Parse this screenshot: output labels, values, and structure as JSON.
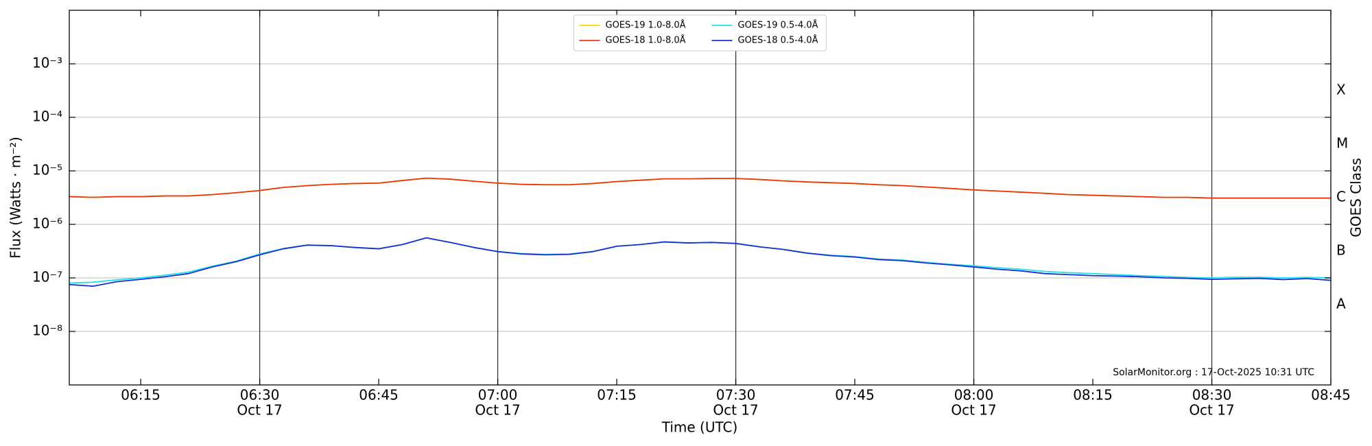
{
  "chart_data": {
    "type": "line",
    "log_y": true,
    "grid": true,
    "legend": "upper center",
    "annotation": "SolarMonitor.org : 17-Oct-2025 10:31 UTC",
    "xlabel": "Time (UTC)",
    "ylabel": "Flux (Watts · m⁻²)",
    "y2label": "GOES Class",
    "xlim": [
      "06:06",
      "08:45"
    ],
    "xticks": [
      "06:15",
      {
        "value": "06:30",
        "label": [
          "06:30",
          "Oct 17"
        ]
      },
      "06:45",
      {
        "value": "07:00",
        "label": [
          "07:00",
          "Oct 17"
        ]
      },
      "07:15",
      {
        "value": "07:30",
        "label": [
          "07:30",
          "Oct 17"
        ]
      },
      "07:45",
      {
        "value": "08:00",
        "label": [
          "08:00",
          "Oct 17"
        ]
      },
      "08:15",
      {
        "value": "08:30",
        "label": [
          "08:30",
          "Oct 17"
        ]
      },
      "08:45"
    ],
    "ylim": [
      1e-09,
      0.01
    ],
    "yticks": [
      {
        "value": 1e-08,
        "label": "10⁻⁸"
      },
      {
        "value": 1e-07,
        "label": "10⁻⁷"
      },
      {
        "value": 1e-06,
        "label": "10⁻⁶"
      },
      {
        "value": 1e-05,
        "label": "10⁻⁵"
      },
      {
        "value": 0.0001,
        "label": "10⁻⁴"
      },
      {
        "value": 0.001,
        "label": "10⁻³"
      }
    ],
    "y2lim": [
      1e-09,
      0.01
    ],
    "y2ticks": [
      {
        "value": 3.16e-08,
        "label": "A"
      },
      {
        "value": 3.16e-07,
        "label": "B"
      },
      {
        "value": 3.16e-06,
        "label": "C"
      },
      {
        "value": 3.16e-05,
        "label": "M"
      },
      {
        "value": 0.000316,
        "label": "X"
      }
    ],
    "x": [
      "06:06",
      "06:09",
      "06:12",
      "06:15",
      "06:18",
      "06:21",
      "06:24",
      "06:27",
      "06:30",
      "06:33",
      "06:36",
      "06:39",
      "06:42",
      "06:45",
      "06:48",
      "06:51",
      "06:54",
      "06:57",
      "07:00",
      "07:03",
      "07:06",
      "07:09",
      "07:12",
      "07:15",
      "07:18",
      "07:21",
      "07:24",
      "07:27",
      "07:30",
      "07:33",
      "07:36",
      "07:39",
      "07:42",
      "07:45",
      "07:48",
      "07:51",
      "07:54",
      "07:57",
      "08:00",
      "08:03",
      "08:06",
      "08:09",
      "08:12",
      "08:15",
      "08:18",
      "08:21",
      "08:24",
      "08:27",
      "08:30",
      "08:33",
      "08:36",
      "08:39",
      "08:42",
      "08:45"
    ],
    "series": [
      {
        "name": "GOES-19 1.0-8.0Å",
        "color": "#ffd700",
        "values": [
          3.3e-06,
          3.2e-06,
          3.3e-06,
          3.3e-06,
          3.4e-06,
          3.4e-06,
          3.6e-06,
          3.9e-06,
          4.3e-06,
          4.9e-06,
          5.3e-06,
          5.6e-06,
          5.8e-06,
          5.9e-06,
          6.6e-06,
          7.3e-06,
          7e-06,
          6.4e-06,
          5.9e-06,
          5.6e-06,
          5.5e-06,
          5.5e-06,
          5.8e-06,
          6.3e-06,
          6.7e-06,
          7.1e-06,
          7.1e-06,
          7.2e-06,
          7.2e-06,
          6.9e-06,
          6.5e-06,
          6.2e-06,
          6e-06,
          5.8e-06,
          5.5e-06,
          5.3e-06,
          5e-06,
          4.7e-06,
          4.4e-06,
          4.2e-06,
          4e-06,
          3.8e-06,
          3.6e-06,
          3.5e-06,
          3.4e-06,
          3.3e-06,
          3.2e-06,
          3.2e-06,
          3.1e-06,
          3.1e-06,
          3.1e-06,
          3.1e-06,
          3.1e-06,
          3.1e-06
        ]
      },
      {
        "name": "GOES-18 1.0-8.0Å",
        "color": "#ee3311",
        "values": [
          3.3e-06,
          3.2e-06,
          3.3e-06,
          3.3e-06,
          3.4e-06,
          3.4e-06,
          3.6e-06,
          3.9e-06,
          4.3e-06,
          4.9e-06,
          5.3e-06,
          5.6e-06,
          5.8e-06,
          5.9e-06,
          6.6e-06,
          7.3e-06,
          7e-06,
          6.4e-06,
          5.9e-06,
          5.6e-06,
          5.5e-06,
          5.5e-06,
          5.8e-06,
          6.3e-06,
          6.7e-06,
          7.1e-06,
          7.1e-06,
          7.2e-06,
          7.2e-06,
          6.9e-06,
          6.5e-06,
          6.2e-06,
          6e-06,
          5.8e-06,
          5.5e-06,
          5.3e-06,
          5e-06,
          4.7e-06,
          4.4e-06,
          4.2e-06,
          4e-06,
          3.8e-06,
          3.6e-06,
          3.5e-06,
          3.4e-06,
          3.3e-06,
          3.2e-06,
          3.2e-06,
          3.1e-06,
          3.1e-06,
          3.1e-06,
          3.1e-06,
          3.1e-06,
          3.1e-06
        ]
      },
      {
        "name": "GOES-19 0.5-4.0Å",
        "color": "#22e0f0",
        "values": [
          8e-08,
          8.3e-08,
          9.2e-08,
          1e-07,
          1.12e-07,
          1.28e-07,
          1.65e-07,
          2.05e-07,
          2.8e-07,
          3.55e-07,
          4.1e-07,
          4e-07,
          3.7e-07,
          3.5e-07,
          4.2e-07,
          5.6e-07,
          4.6e-07,
          3.7e-07,
          3.1e-07,
          2.85e-07,
          2.75e-07,
          2.8e-07,
          3.1e-07,
          3.9e-07,
          4.2e-07,
          4.7e-07,
          4.5e-07,
          4.6e-07,
          4.4e-07,
          3.8e-07,
          3.4e-07,
          2.9e-07,
          2.65e-07,
          2.5e-07,
          2.25e-07,
          2.15e-07,
          1.95e-07,
          1.8e-07,
          1.68e-07,
          1.55e-07,
          1.45e-07,
          1.32e-07,
          1.25e-07,
          1.2e-07,
          1.15e-07,
          1.1e-07,
          1.06e-07,
          1.02e-07,
          1e-07,
          1.03e-07,
          1.03e-07,
          1e-07,
          1.02e-07,
          1e-07
        ]
      },
      {
        "name": "GOES-18 0.5-4.0Å",
        "color": "#1a2fd0",
        "values": [
          7.5e-08,
          7e-08,
          8.5e-08,
          9.4e-08,
          1.05e-07,
          1.2e-07,
          1.6e-07,
          2e-07,
          2.7e-07,
          3.5e-07,
          4.1e-07,
          4e-07,
          3.7e-07,
          3.5e-07,
          4.2e-07,
          5.6e-07,
          4.6e-07,
          3.7e-07,
          3.1e-07,
          2.8e-07,
          2.7e-07,
          2.75e-07,
          3.1e-07,
          3.9e-07,
          4.2e-07,
          4.7e-07,
          4.5e-07,
          4.6e-07,
          4.4e-07,
          3.8e-07,
          3.4e-07,
          2.9e-07,
          2.6e-07,
          2.45e-07,
          2.2e-07,
          2.1e-07,
          1.9e-07,
          1.75e-07,
          1.6e-07,
          1.45e-07,
          1.35e-07,
          1.2e-07,
          1.15e-07,
          1.1e-07,
          1.08e-07,
          1.05e-07,
          1e-07,
          9.8e-08,
          9.4e-08,
          9.6e-08,
          9.8e-08,
          9.3e-08,
          9.7e-08,
          9e-08
        ]
      }
    ]
  }
}
